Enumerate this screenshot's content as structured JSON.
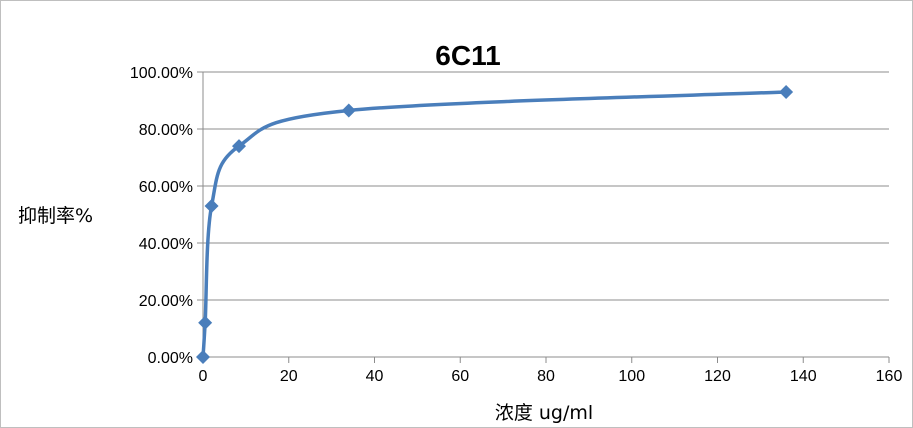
{
  "chart_data": {
    "type": "scatter",
    "title": "6C11",
    "xlabel": "浓度 ug/ml",
    "ylabel": "抑制率%",
    "xlim": [
      0,
      160
    ],
    "ylim": [
      0,
      1
    ],
    "x_ticks": [
      "0",
      "20",
      "40",
      "60",
      "80",
      "100",
      "120",
      "140",
      "160"
    ],
    "y_ticks": [
      "0.00%",
      "20.00%",
      "40.00%",
      "60.00%",
      "80.00%",
      "100.00%"
    ],
    "grid": "horizontal",
    "smoothed_line": true,
    "marker": "diamond",
    "series": [
      {
        "color": "#4a7ebb",
        "points": [
          {
            "x": 0,
            "y": 0.0
          },
          {
            "x": 0.5,
            "y": 0.12
          },
          {
            "x": 2,
            "y": 0.53
          },
          {
            "x": 8.4,
            "y": 0.74
          },
          {
            "x": 34,
            "y": 0.865
          },
          {
            "x": 136,
            "y": 0.93
          }
        ]
      }
    ]
  }
}
